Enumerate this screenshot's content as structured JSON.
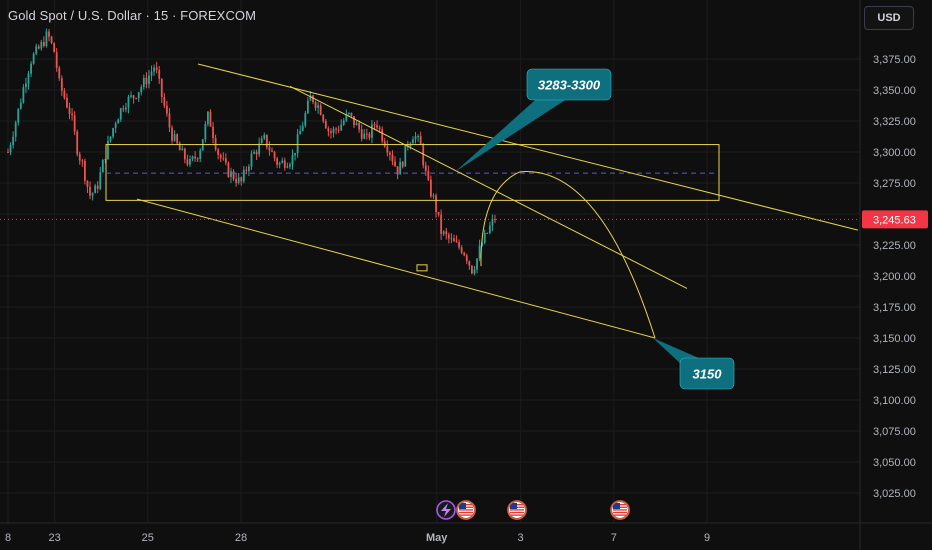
{
  "header": {
    "symbol_title": "Gold Spot / U.S. Dollar · 15 · FOREXCOM",
    "currency_label": "USD"
  },
  "theme": {
    "background": "#0f0f0f",
    "up_color": "#26a69a",
    "down_color": "#ef5350",
    "drawing_color": "#e8d44d",
    "callout_color": "#0e6f7e",
    "price_tag_color": "#f23645",
    "dashed_line_color": "#5b5bd6"
  },
  "chart_data": {
    "type": "candlestick",
    "title": "Gold Spot / U.S. Dollar · 15 · FOREXCOM",
    "yaxis": {
      "range": [
        3005,
        3400
      ],
      "ticks": [
        3025,
        3050,
        3075,
        3100,
        3125,
        3150,
        3175,
        3200,
        3225,
        3250,
        3275,
        3300,
        3325,
        3350,
        3375
      ],
      "tick_labels": [
        "3,025.00",
        "3,050.00",
        "3,075.00",
        "3,100.00",
        "3,125.00",
        "3,150.00",
        "3,175.00",
        "3,200.00",
        "3,225.00",
        "3,250.00",
        "3,275.00",
        "3,300.00",
        "3,325.00",
        "3,350.00",
        "3,375.00"
      ]
    },
    "xaxis": {
      "labels": [
        "8",
        "23",
        "25",
        "28",
        "May",
        "3",
        "7",
        "9"
      ],
      "label_positions": [
        0.0,
        1.0,
        3.0,
        5.0,
        9.2,
        11.0,
        13.0,
        15.0
      ]
    },
    "last_price": 3245.63,
    "last_price_label": "3,245.63",
    "price_path": [
      [
        0.0,
        3300
      ],
      [
        0.2,
        3330
      ],
      [
        0.35,
        3355
      ],
      [
        0.5,
        3375
      ],
      [
        0.7,
        3385
      ],
      [
        0.85,
        3395
      ],
      [
        1.0,
        3380
      ],
      [
        1.1,
        3355
      ],
      [
        1.2,
        3345
      ],
      [
        1.35,
        3330
      ],
      [
        1.5,
        3300
      ],
      [
        1.6,
        3290
      ],
      [
        1.75,
        3265
      ],
      [
        1.9,
        3270
      ],
      [
        2.1,
        3300
      ],
      [
        2.3,
        3325
      ],
      [
        2.5,
        3340
      ],
      [
        2.7,
        3345
      ],
      [
        2.9,
        3355
      ],
      [
        3.0,
        3360
      ],
      [
        3.15,
        3370
      ],
      [
        3.3,
        3345
      ],
      [
        3.5,
        3315
      ],
      [
        3.7,
        3300
      ],
      [
        3.9,
        3290
      ],
      [
        4.1,
        3300
      ],
      [
        4.3,
        3330
      ],
      [
        4.5,
        3300
      ],
      [
        4.7,
        3285
      ],
      [
        5.0,
        3275
      ],
      [
        5.2,
        3295
      ],
      [
        5.5,
        3310
      ],
      [
        5.8,
        3290
      ],
      [
        6.1,
        3295
      ],
      [
        6.3,
        3320
      ],
      [
        6.5,
        3345
      ],
      [
        6.7,
        3335
      ],
      [
        6.9,
        3315
      ],
      [
        7.1,
        3320
      ],
      [
        7.3,
        3330
      ],
      [
        7.5,
        3320
      ],
      [
        7.7,
        3310
      ],
      [
        7.9,
        3325
      ],
      [
        8.0,
        3315
      ],
      [
        8.2,
        3300
      ],
      [
        8.35,
        3285
      ],
      [
        8.45,
        3290
      ],
      [
        8.55,
        3305
      ],
      [
        8.7,
        3315
      ],
      [
        8.85,
        3305
      ],
      [
        9.0,
        3275
      ],
      [
        9.15,
        3260
      ],
      [
        9.3,
        3235
      ],
      [
        9.45,
        3230
      ],
      [
        9.6,
        3225
      ],
      [
        9.75,
        3222
      ],
      [
        9.85,
        3215
      ],
      [
        9.95,
        3205
      ],
      [
        10.05,
        3212
      ],
      [
        10.15,
        3225
      ],
      [
        10.25,
        3232
      ],
      [
        10.35,
        3240
      ],
      [
        10.45,
        3247
      ],
      [
        10.5,
        3245.63
      ]
    ],
    "annotations": {
      "zone_label": "3283-3300",
      "target_label": "3150"
    }
  }
}
